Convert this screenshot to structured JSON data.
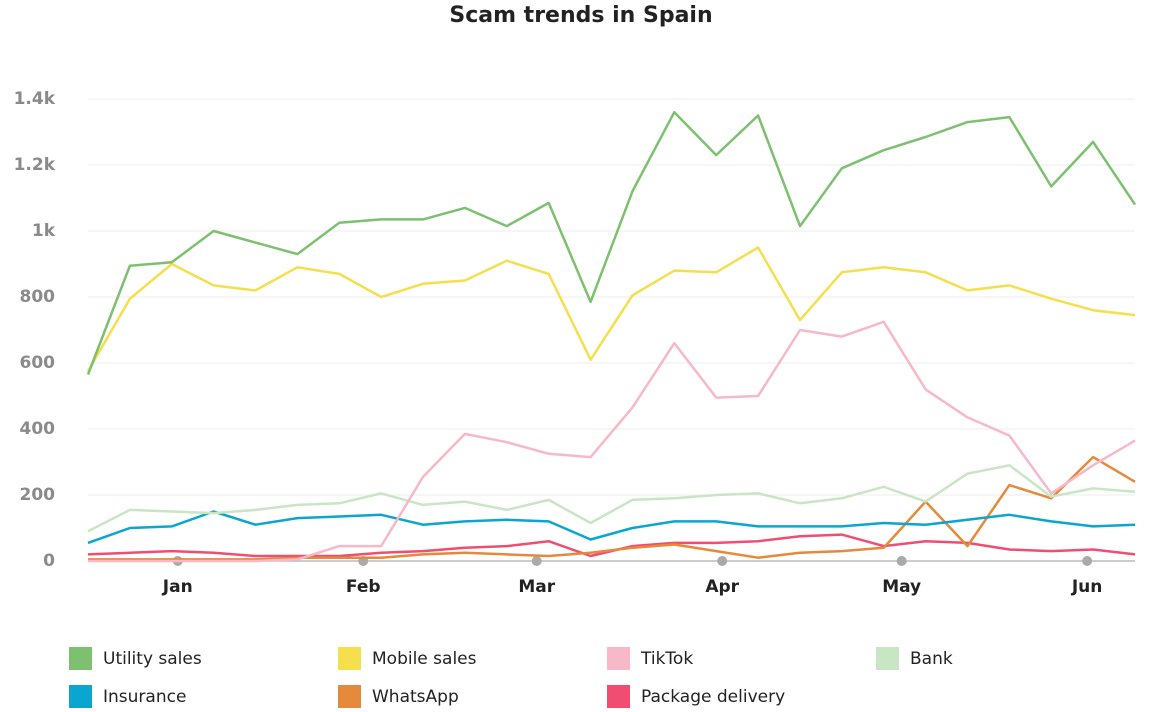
{
  "chart_data": {
    "type": "line",
    "title": "Scam trends in Spain",
    "x": [
      -15,
      -8,
      -1,
      6,
      13,
      20,
      27,
      34,
      41,
      48,
      55,
      62,
      69,
      76,
      83,
      90,
      97,
      104,
      111,
      118,
      125,
      132,
      139,
      146,
      153,
      160
    ],
    "xlim": [
      -15,
      160
    ],
    "xticks": [
      {
        "value": 0,
        "label": "Jan"
      },
      {
        "value": 31,
        "label": "Feb"
      },
      {
        "value": 60,
        "label": "Mar"
      },
      {
        "value": 91,
        "label": "Apr"
      },
      {
        "value": 121,
        "label": "May"
      },
      {
        "value": 152,
        "label": "Jun"
      }
    ],
    "ylim": [
      0,
      1400
    ],
    "yticks": [
      0,
      200,
      400,
      600,
      800,
      {
        "value": 1000,
        "label": "1k"
      },
      {
        "value": 1200,
        "label": "1.2k"
      },
      {
        "value": 1400,
        "label": "1.4k"
      }
    ],
    "grid": true,
    "legend": "bottom",
    "series": [
      {
        "name": "Utility sales",
        "color": "#7dc06f",
        "values": [
          565,
          895,
          905,
          1000,
          965,
          930,
          1025,
          1035,
          1035,
          1070,
          1015,
          1085,
          785,
          1120,
          1360,
          1230,
          1350,
          1015,
          1190,
          1245,
          1285,
          1330,
          1345,
          1135,
          1270,
          1080
        ]
      },
      {
        "name": "Mobile sales",
        "color": "#f5df4d",
        "values": [
          575,
          795,
          900,
          835,
          820,
          890,
          870,
          800,
          840,
          850,
          910,
          870,
          610,
          805,
          880,
          875,
          950,
          730,
          875,
          890,
          875,
          820,
          835,
          795,
          760,
          745
        ]
      },
      {
        "name": "TikTok",
        "color": "#f7b8c8",
        "values": [
          0,
          0,
          0,
          0,
          0,
          5,
          45,
          45,
          255,
          385,
          360,
          325,
          315,
          465,
          660,
          495,
          500,
          700,
          680,
          725,
          520,
          435,
          380,
          205,
          290,
          365
        ]
      },
      {
        "name": "Bank",
        "color": "#c9e6c4",
        "values": [
          90,
          155,
          150,
          145,
          155,
          170,
          175,
          205,
          170,
          180,
          155,
          185,
          115,
          185,
          190,
          200,
          205,
          175,
          190,
          225,
          180,
          265,
          290,
          195,
          220,
          210
        ]
      },
      {
        "name": "Insurance",
        "color": "#0aa6d0",
        "values": [
          55,
          100,
          105,
          150,
          110,
          130,
          135,
          140,
          110,
          120,
          125,
          120,
          65,
          100,
          120,
          120,
          105,
          105,
          105,
          115,
          110,
          125,
          140,
          120,
          105,
          110
        ]
      },
      {
        "name": "WhatsApp",
        "color": "#e5893a",
        "values": [
          5,
          5,
          5,
          5,
          5,
          10,
          10,
          10,
          20,
          25,
          20,
          15,
          25,
          40,
          50,
          30,
          10,
          25,
          30,
          40,
          180,
          45,
          230,
          190,
          315,
          240
        ]
      },
      {
        "name": "Package delivery",
        "color": "#ef4e72",
        "values": [
          20,
          25,
          30,
          25,
          15,
          15,
          15,
          25,
          30,
          40,
          45,
          60,
          15,
          45,
          55,
          55,
          60,
          75,
          80,
          45,
          60,
          55,
          35,
          30,
          35,
          20
        ]
      }
    ]
  }
}
